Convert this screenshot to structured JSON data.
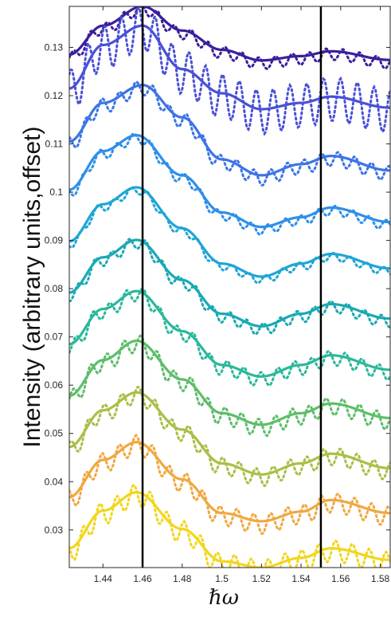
{
  "chart_data": {
    "type": "line",
    "xlabel": "ℏω",
    "ylabel": "Intensity (arbitrary units,offset)",
    "xlim": [
      1.423,
      1.585
    ],
    "ylim": [
      0.0222,
      0.1385
    ],
    "x_ticks": [
      1.44,
      1.46,
      1.48,
      1.5,
      1.52,
      1.54,
      1.56,
      1.58
    ],
    "x_tick_labels": [
      "1.44",
      "1.46",
      "1.48",
      "1.5",
      "1.52",
      "1.54",
      "1.56",
      "1.58"
    ],
    "y_ticks": [
      0.03,
      0.04,
      0.05,
      0.06,
      0.07,
      0.08,
      0.09,
      0.1,
      0.11,
      0.12,
      0.13
    ],
    "y_tick_labels": [
      "0.03",
      "0.04",
      "0.05",
      "0.06",
      "0.07",
      "0.08",
      "0.09",
      "0.1",
      "0.11",
      "0.12",
      "0.13"
    ],
    "vertical_lines": [
      1.46,
      1.55
    ],
    "grid": false,
    "legend": false,
    "series_style": "solid = smooth, dotted = oscillating",
    "series": [
      {
        "color": "#3b1f9c",
        "solid": [
          [
            1.423,
            0.1285
          ],
          [
            1.44,
            0.1345
          ],
          [
            1.46,
            0.1385
          ],
          [
            1.48,
            0.1335
          ],
          [
            1.5,
            0.1295
          ],
          [
            1.52,
            0.1273
          ],
          [
            1.54,
            0.1282
          ],
          [
            1.555,
            0.1292
          ],
          [
            1.585,
            0.1274
          ]
        ],
        "dotted_amplitude": 0.0012
      },
      {
        "color": "#4a50d6",
        "solid": [
          [
            1.423,
            0.1215
          ],
          [
            1.44,
            0.1305
          ],
          [
            1.46,
            0.1345
          ],
          [
            1.48,
            0.1255
          ],
          [
            1.5,
            0.1205
          ],
          [
            1.52,
            0.1172
          ],
          [
            1.54,
            0.1185
          ],
          [
            1.555,
            0.1198
          ],
          [
            1.585,
            0.1175
          ]
        ],
        "dotted_amplitude": 0.0045
      },
      {
        "color": "#3d74e6",
        "solid": [
          [
            1.423,
            0.1105
          ],
          [
            1.44,
            0.1185
          ],
          [
            1.46,
            0.1222
          ],
          [
            1.48,
            0.1155
          ],
          [
            1.5,
            0.1068
          ],
          [
            1.52,
            0.1035
          ],
          [
            1.54,
            0.1058
          ],
          [
            1.555,
            0.1075
          ],
          [
            1.585,
            0.1045
          ]
        ],
        "dotted_amplitude": 0.0015
      },
      {
        "color": "#2f8fe8",
        "solid": [
          [
            1.423,
            0.1005
          ],
          [
            1.44,
            0.1085
          ],
          [
            1.457,
            0.1118
          ],
          [
            1.48,
            0.1035
          ],
          [
            1.5,
            0.0958
          ],
          [
            1.52,
            0.0928
          ],
          [
            1.54,
            0.0948
          ],
          [
            1.555,
            0.0968
          ],
          [
            1.585,
            0.0938
          ]
        ],
        "dotted_amplitude": 0.001
      },
      {
        "color": "#1fa5d6",
        "solid": [
          [
            1.423,
            0.0898
          ],
          [
            1.44,
            0.0975
          ],
          [
            1.457,
            0.101
          ],
          [
            1.48,
            0.0925
          ],
          [
            1.5,
            0.0852
          ],
          [
            1.52,
            0.0825
          ],
          [
            1.54,
            0.0852
          ],
          [
            1.555,
            0.0872
          ],
          [
            1.585,
            0.0842
          ]
        ],
        "dotted_amplitude": 0.0008
      },
      {
        "color": "#1aa9b3",
        "solid": [
          [
            1.423,
            0.0792
          ],
          [
            1.44,
            0.0865
          ],
          [
            1.457,
            0.0901
          ],
          [
            1.48,
            0.0818
          ],
          [
            1.5,
            0.0748
          ],
          [
            1.52,
            0.0722
          ],
          [
            1.54,
            0.0748
          ],
          [
            1.555,
            0.0768
          ],
          [
            1.585,
            0.0738
          ]
        ],
        "dotted_amplitude": 0.0012
      },
      {
        "color": "#2cb89a",
        "solid": [
          [
            1.423,
            0.0685
          ],
          [
            1.44,
            0.0758
          ],
          [
            1.457,
            0.0795
          ],
          [
            1.48,
            0.0712
          ],
          [
            1.5,
            0.0642
          ],
          [
            1.52,
            0.0618
          ],
          [
            1.54,
            0.0642
          ],
          [
            1.555,
            0.0662
          ],
          [
            1.585,
            0.0632
          ]
        ],
        "dotted_amplitude": 0.0015
      },
      {
        "color": "#5dbe6a",
        "solid": [
          [
            1.423,
            0.0578
          ],
          [
            1.44,
            0.0652
          ],
          [
            1.457,
            0.0692
          ],
          [
            1.48,
            0.0612
          ],
          [
            1.5,
            0.0542
          ],
          [
            1.52,
            0.0518
          ],
          [
            1.54,
            0.0542
          ],
          [
            1.555,
            0.0562
          ],
          [
            1.585,
            0.0532
          ]
        ],
        "dotted_amplitude": 0.0018
      },
      {
        "color": "#a8c048",
        "solid": [
          [
            1.423,
            0.0472
          ],
          [
            1.44,
            0.0548
          ],
          [
            1.457,
            0.0585
          ],
          [
            1.48,
            0.0508
          ],
          [
            1.5,
            0.0438
          ],
          [
            1.52,
            0.0415
          ],
          [
            1.54,
            0.0438
          ],
          [
            1.555,
            0.0458
          ],
          [
            1.585,
            0.0428
          ]
        ],
        "dotted_amplitude": 0.0018
      },
      {
        "color": "#f0a840",
        "solid": [
          [
            1.423,
            0.0368
          ],
          [
            1.44,
            0.0445
          ],
          [
            1.457,
            0.0482
          ],
          [
            1.48,
            0.0405
          ],
          [
            1.5,
            0.0335
          ],
          [
            1.52,
            0.0318
          ],
          [
            1.54,
            0.0338
          ],
          [
            1.555,
            0.0362
          ],
          [
            1.585,
            0.0335
          ]
        ],
        "dotted_amplitude": 0.002
      },
      {
        "color": "#f2d61c",
        "solid": [
          [
            1.423,
            0.0262
          ],
          [
            1.44,
            0.034
          ],
          [
            1.457,
            0.0378
          ],
          [
            1.48,
            0.0302
          ],
          [
            1.5,
            0.0235
          ],
          [
            1.52,
            0.0222
          ],
          [
            1.54,
            0.0242
          ],
          [
            1.555,
            0.0262
          ],
          [
            1.585,
            0.0238
          ]
        ],
        "dotted_amplitude": 0.0022
      }
    ]
  }
}
